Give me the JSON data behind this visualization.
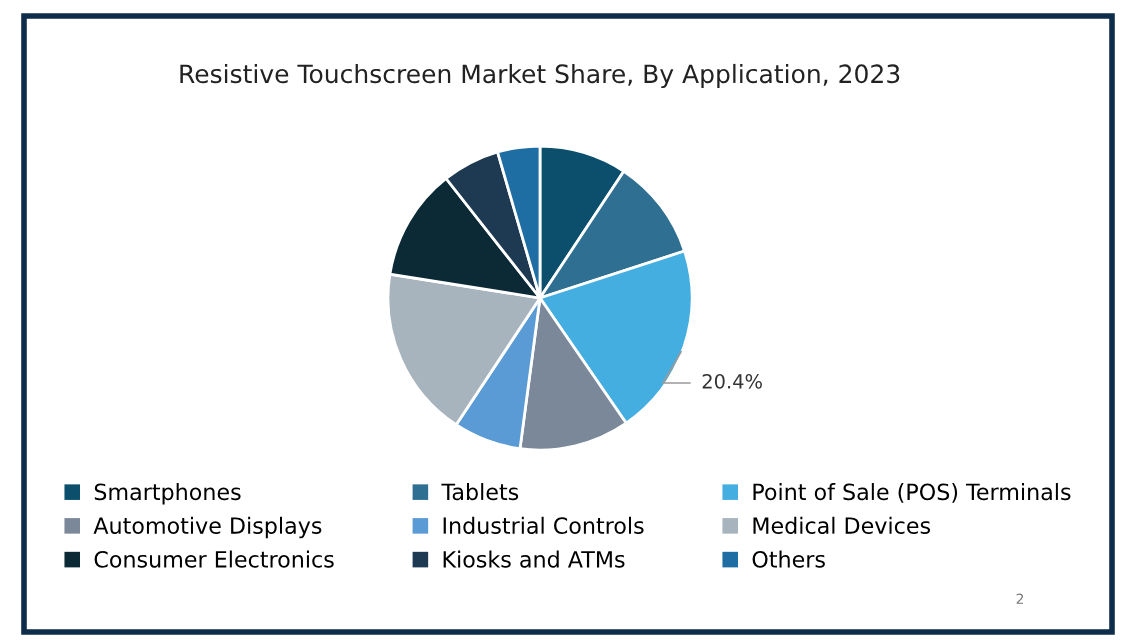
{
  "chart_data": {
    "type": "pie",
    "title": "Resistive Touchscreen Market Share, By Application, 2023",
    "categories": [
      "Smartphones",
      "Tablets",
      "Point of Sale (POS) Terminals",
      "Automotive Displays",
      "Industrial Controls",
      "Medical Devices",
      "Consumer Electronics",
      "Kiosks and ATMs",
      "Others"
    ],
    "values": [
      9.3,
      10.7,
      20.4,
      11.7,
      7.2,
      18.2,
      11.9,
      6.1,
      4.5
    ],
    "colors": [
      "#0b4f6c",
      "#2f6f92",
      "#45aee0",
      "#7a8899",
      "#5b9bd5",
      "#a7b4be",
      "#0b2a36",
      "#1e3a52",
      "#1f6ea3"
    ],
    "value_labels": [
      null,
      null,
      "20.4%",
      null,
      null,
      null,
      null,
      null,
      null
    ],
    "legend": "bottom",
    "annotations": [
      "2"
    ]
  }
}
